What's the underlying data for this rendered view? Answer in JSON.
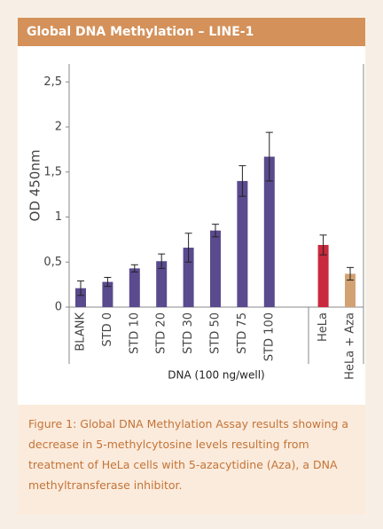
{
  "chart_data": {
    "type": "bar",
    "title": "Global DNA Methylation – LINE-1",
    "y_label": "OD 450nm",
    "x_label": "DNA (100 ng/well)",
    "caption": "Figure 1: Global DNA Methylation Assay results showing a decrease in 5-methylcytosine levels resulting from treatment of HeLa cells with 5-azacytidine (Aza), a DNA methyltransferase inhibitor.",
    "categories": [
      "BLANK",
      "STD 0",
      "STD 10",
      "STD 20",
      "STD 30",
      "STD 50",
      "STD 75",
      "STD 100",
      null,
      "HeLa",
      "HeLa + Aza"
    ],
    "values": [
      0.21,
      0.28,
      0.43,
      0.51,
      0.66,
      0.85,
      1.4,
      1.67,
      null,
      0.69,
      0.37
    ],
    "errors": [
      0.08,
      0.05,
      0.04,
      0.08,
      0.16,
      0.07,
      0.17,
      0.27,
      null,
      0.11,
      0.07
    ],
    "colors": [
      "#5a4a8e",
      "#5a4a8e",
      "#5a4a8e",
      "#5a4a8e",
      "#5a4a8e",
      "#5a4a8e",
      "#5a4a8e",
      "#5a4a8e",
      null,
      "#c92a3e",
      "#d3a273"
    ],
    "ylim": [
      0,
      2.7
    ],
    "yticks": [
      0,
      {
        "value": 0.5,
        "label": "0,5"
      },
      1,
      {
        "value": 1.5,
        "label": "1,5"
      },
      2,
      {
        "value": 2.5,
        "label": "2,5"
      }
    ],
    "grid": false
  }
}
